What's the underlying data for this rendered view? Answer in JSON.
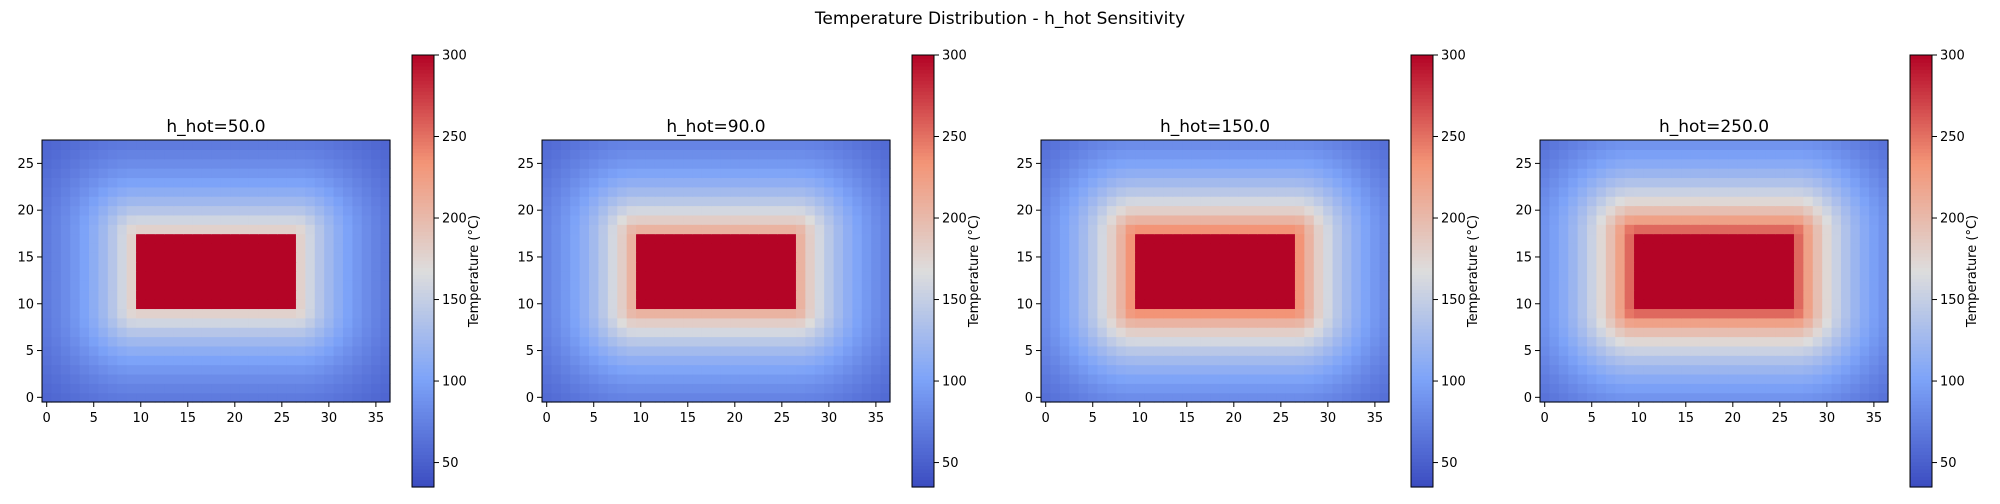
{
  "figure": {
    "suptitle": "Temperature Distribution - h_hot Sensitivity"
  },
  "chart_data": [
    {
      "type": "heatmap",
      "title": "h_hot=50.0",
      "h_hot": 50.0,
      "grid": {
        "nx": 37,
        "ny": 28
      },
      "xlim": [
        -0.5,
        36.5
      ],
      "ylim": [
        -0.5,
        27.5
      ],
      "xticks": [
        0,
        5,
        10,
        15,
        20,
        25,
        30,
        35
      ],
      "yticks": [
        0,
        5,
        10,
        15,
        20,
        25
      ],
      "hot_block": {
        "x": [
          10,
          26
        ],
        "y": [
          10,
          17
        ],
        "temperature": 300
      },
      "ambient_temperature": 35,
      "peak_temperature_near_block": 190,
      "colorbar": {
        "label": "Temperature (°C)",
        "ticks": [
          50,
          100,
          150,
          200,
          250,
          300
        ],
        "range": [
          35,
          300
        ],
        "colormap": "coolwarm"
      }
    },
    {
      "type": "heatmap",
      "title": "h_hot=90.0",
      "h_hot": 90.0,
      "grid": {
        "nx": 37,
        "ny": 28
      },
      "xlim": [
        -0.5,
        36.5
      ],
      "ylim": [
        -0.5,
        27.5
      ],
      "xticks": [
        0,
        5,
        10,
        15,
        20,
        25,
        30,
        35
      ],
      "yticks": [
        0,
        5,
        10,
        15,
        20,
        25
      ],
      "hot_block": {
        "x": [
          10,
          26
        ],
        "y": [
          10,
          17
        ],
        "temperature": 300
      },
      "ambient_temperature": 35,
      "peak_temperature_near_block": 220,
      "colorbar": {
        "label": "Temperature (°C)",
        "ticks": [
          50,
          100,
          150,
          200,
          250,
          300
        ],
        "range": [
          35,
          300
        ],
        "colormap": "coolwarm"
      }
    },
    {
      "type": "heatmap",
      "title": "h_hot=150.0",
      "h_hot": 150.0,
      "grid": {
        "nx": 37,
        "ny": 28
      },
      "xlim": [
        -0.5,
        36.5
      ],
      "ylim": [
        -0.5,
        27.5
      ],
      "xticks": [
        0,
        5,
        10,
        15,
        20,
        25,
        30,
        35
      ],
      "yticks": [
        0,
        5,
        10,
        15,
        20,
        25
      ],
      "hot_block": {
        "x": [
          10,
          26
        ],
        "y": [
          10,
          17
        ],
        "temperature": 300
      },
      "ambient_temperature": 35,
      "peak_temperature_near_block": 250,
      "colorbar": {
        "label": "Temperature (°C)",
        "ticks": [
          50,
          100,
          150,
          200,
          250,
          300
        ],
        "range": [
          35,
          300
        ],
        "colormap": "coolwarm"
      }
    },
    {
      "type": "heatmap",
      "title": "h_hot=250.0",
      "h_hot": 250.0,
      "grid": {
        "nx": 37,
        "ny": 28
      },
      "xlim": [
        -0.5,
        36.5
      ],
      "ylim": [
        -0.5,
        27.5
      ],
      "xticks": [
        0,
        5,
        10,
        15,
        20,
        25,
        30,
        35
      ],
      "yticks": [
        0,
        5,
        10,
        15,
        20,
        25
      ],
      "hot_block": {
        "x": [
          10,
          26
        ],
        "y": [
          10,
          17
        ],
        "temperature": 300
      },
      "ambient_temperature": 35,
      "peak_temperature_near_block": 272,
      "colorbar": {
        "label": "Temperature (°C)",
        "ticks": [
          50,
          100,
          150,
          200,
          250,
          300
        ],
        "range": [
          35,
          300
        ],
        "colormap": "coolwarm"
      }
    }
  ]
}
